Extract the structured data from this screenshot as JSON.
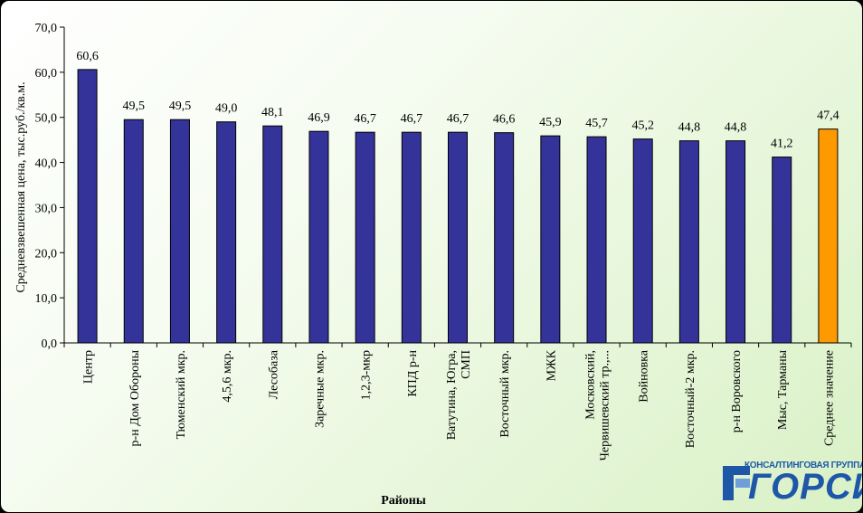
{
  "chart_data": {
    "type": "bar",
    "xlabel": "Районы",
    "ylabel": "Средневзвешенная цена, тыс.руб./кв.м.",
    "ylim": [
      0,
      70
    ],
    "yticks": [
      "0,0",
      "10,0",
      "20,0",
      "30,0",
      "40,0",
      "50,0",
      "60,0",
      "70,0"
    ],
    "grid": false,
    "legend": "none",
    "bar_color": "#333399",
    "highlight_color": "#ff9900",
    "highlight_index": 15,
    "categories": [
      [
        "Центр"
      ],
      [
        "р-н Дом Обороны"
      ],
      [
        "Тюменский мкр."
      ],
      [
        "4,5,6 мкр."
      ],
      [
        "Лесобаза"
      ],
      [
        "Заречные мкр."
      ],
      [
        "1,2,3-мкр"
      ],
      [
        "КПД р-н"
      ],
      [
        "Ватутина,  Югра,",
        "СМП"
      ],
      [
        "Восточный мкр."
      ],
      [
        "МЖК"
      ],
      [
        "Московский,",
        "Червишевский тр.,..."
      ],
      [
        "Войновка"
      ],
      [
        "Восточный-2 мкр."
      ],
      [
        "р-н Воровского"
      ],
      [
        "Мыс, Тарманы"
      ],
      [
        "Среднее значение"
      ]
    ],
    "values": [
      60.6,
      49.5,
      49.5,
      49.0,
      48.1,
      46.9,
      46.7,
      46.7,
      46.7,
      46.6,
      45.9,
      45.7,
      45.2,
      44.8,
      44.8,
      41.2,
      47.4
    ],
    "value_labels": [
      "60,6",
      "49,5",
      "49,5",
      "49,0",
      "48,1",
      "46,9",
      "46,7",
      "46,7",
      "46,7",
      "46,6",
      "45,9",
      "45,7",
      "45,2",
      "44,8",
      "44,8",
      "41,2",
      "47,4"
    ]
  },
  "logo": {
    "small_text": "КОНСАЛТИНГОВАЯ ГРУППА",
    "big_text": "ГОРСИ",
    "color": "#1f57a8"
  }
}
